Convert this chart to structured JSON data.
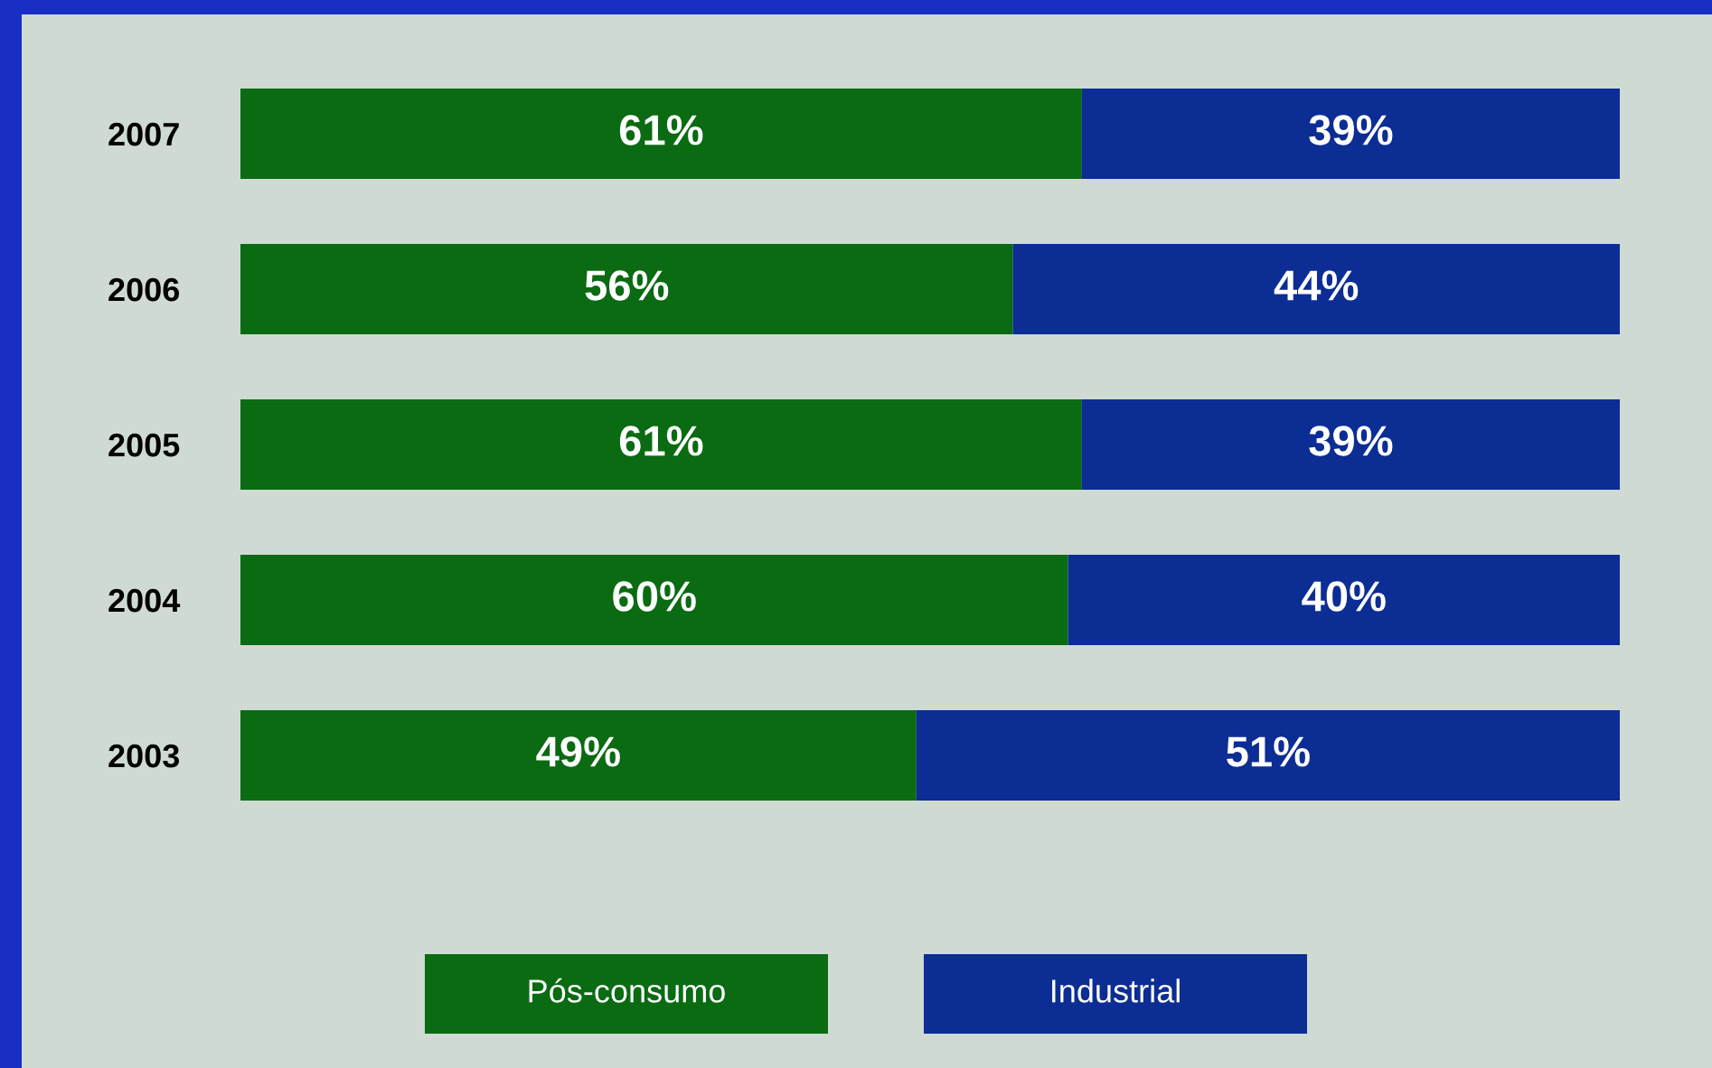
{
  "chart_data": {
    "type": "bar",
    "orientation": "horizontal",
    "stacked": true,
    "categories": [
      "2007",
      "2006",
      "2005",
      "2004",
      "2003"
    ],
    "series": [
      {
        "name": "Pós-consumo",
        "color": "#0a6b12",
        "values": [
          61,
          56,
          61,
          60,
          49
        ],
        "value_labels": [
          "61%",
          "56%",
          "61%",
          "60%",
          "49%"
        ]
      },
      {
        "name": "Industrial",
        "color": "#0c2d94",
        "values": [
          39,
          44,
          39,
          40,
          51
        ],
        "value_labels": [
          "39%",
          "44%",
          "39%",
          "40%",
          "51%"
        ]
      }
    ],
    "legend": "bottom",
    "grid": false
  }
}
